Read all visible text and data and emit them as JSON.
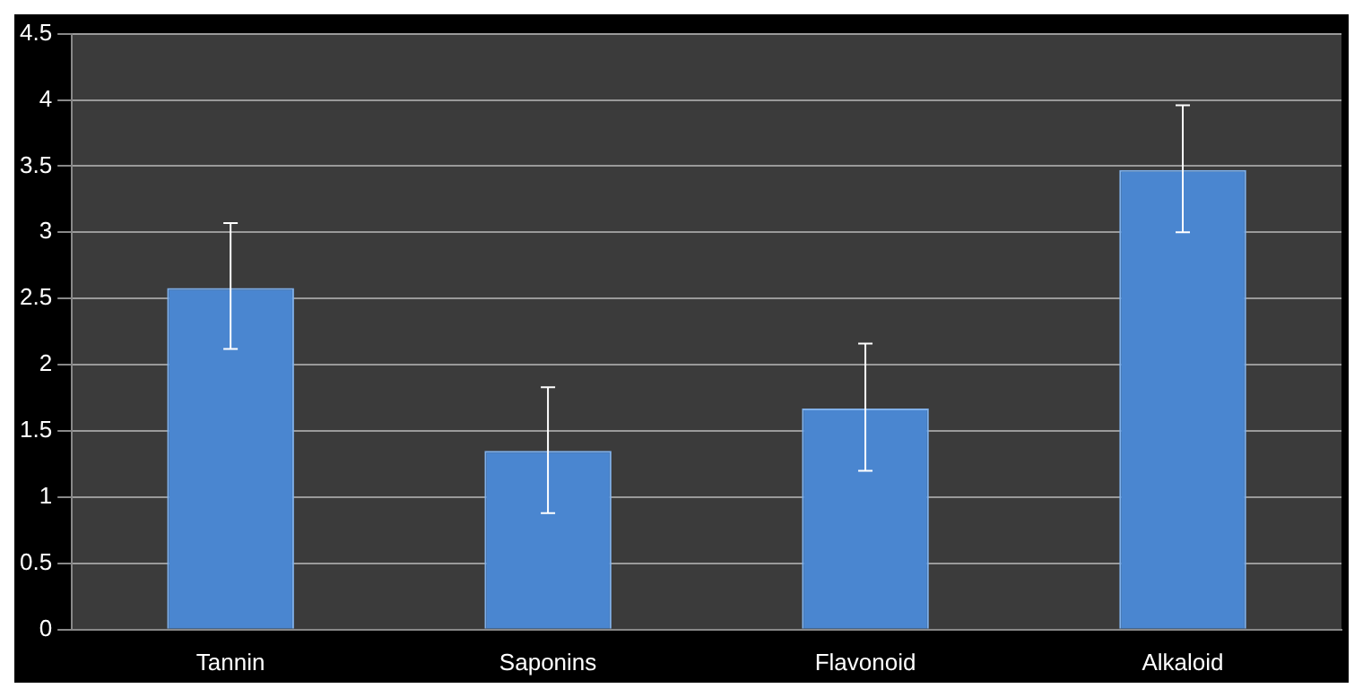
{
  "chart_data": {
    "type": "bar",
    "categories": [
      "Tannin",
      "Saponins",
      "Flavonoid",
      "Alkaloid"
    ],
    "values": [
      2.58,
      1.35,
      1.67,
      3.47
    ],
    "errors": [
      [
        2.12,
        3.07
      ],
      [
        0.88,
        1.83
      ],
      [
        1.2,
        2.16
      ],
      [
        3.0,
        3.96
      ]
    ],
    "color": "#4a86d0",
    "ylim": [
      0,
      4.5
    ],
    "yticks": [
      0,
      0.5,
      1,
      1.5,
      2,
      2.5,
      3,
      3.5,
      4,
      4.5
    ],
    "grid": "y",
    "legend": false
  }
}
